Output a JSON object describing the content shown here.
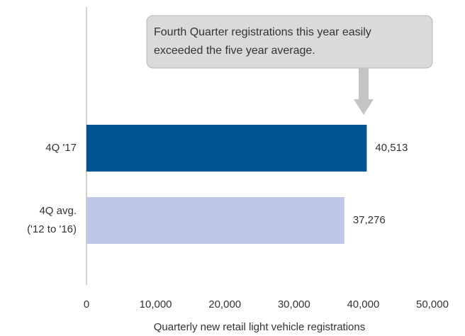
{
  "chart_data": {
    "type": "barh",
    "annotation": "Fourth Quarter registrations this year easily\nexceeded the five year average.",
    "categories": [
      "4Q '17",
      "4Q avg.\n('12 to '16)"
    ],
    "values": [
      40513,
      37276
    ],
    "value_labels": [
      "40,513",
      "37,276"
    ],
    "colors": [
      "#005493",
      "#bcc8e6"
    ],
    "xlim": [
      0,
      50000
    ],
    "xticks": [
      0,
      {
        "value": 10000,
        "label": "10,000"
      },
      {
        "value": 20000,
        "label": "20,000"
      },
      {
        "value": 30000,
        "label": "30,000"
      },
      {
        "value": 40000,
        "label": "40,000"
      },
      {
        "value": 50000,
        "label": "50,000"
      }
    ],
    "xlabel": "Quarterly new retail light vehicle registrations"
  }
}
